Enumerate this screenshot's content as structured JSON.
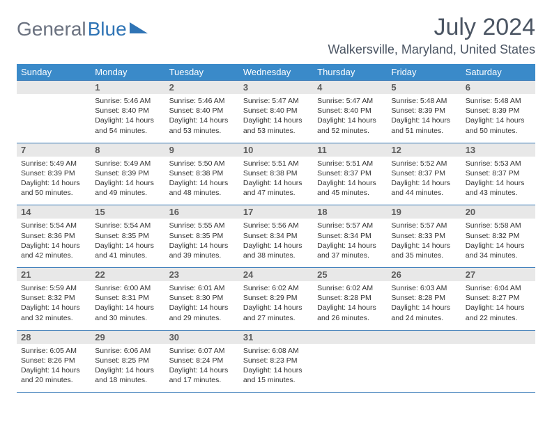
{
  "logo": {
    "text_gray": "General",
    "text_blue": "Blue"
  },
  "title": "July 2024",
  "location": "Walkersville, Maryland, United States",
  "colors": {
    "header_bg": "#3a8ac9",
    "header_text": "#ffffff",
    "daynum_bg": "#e8e8e8",
    "border": "#2f74b5",
    "title_color": "#4b5563"
  },
  "dow": [
    "Sunday",
    "Monday",
    "Tuesday",
    "Wednesday",
    "Thursday",
    "Friday",
    "Saturday"
  ],
  "weeks": [
    [
      {
        "n": "",
        "sr": "",
        "ss": "",
        "dl": ""
      },
      {
        "n": "1",
        "sr": "Sunrise: 5:46 AM",
        "ss": "Sunset: 8:40 PM",
        "dl": "Daylight: 14 hours and 54 minutes."
      },
      {
        "n": "2",
        "sr": "Sunrise: 5:46 AM",
        "ss": "Sunset: 8:40 PM",
        "dl": "Daylight: 14 hours and 53 minutes."
      },
      {
        "n": "3",
        "sr": "Sunrise: 5:47 AM",
        "ss": "Sunset: 8:40 PM",
        "dl": "Daylight: 14 hours and 53 minutes."
      },
      {
        "n": "4",
        "sr": "Sunrise: 5:47 AM",
        "ss": "Sunset: 8:40 PM",
        "dl": "Daylight: 14 hours and 52 minutes."
      },
      {
        "n": "5",
        "sr": "Sunrise: 5:48 AM",
        "ss": "Sunset: 8:39 PM",
        "dl": "Daylight: 14 hours and 51 minutes."
      },
      {
        "n": "6",
        "sr": "Sunrise: 5:48 AM",
        "ss": "Sunset: 8:39 PM",
        "dl": "Daylight: 14 hours and 50 minutes."
      }
    ],
    [
      {
        "n": "7",
        "sr": "Sunrise: 5:49 AM",
        "ss": "Sunset: 8:39 PM",
        "dl": "Daylight: 14 hours and 50 minutes."
      },
      {
        "n": "8",
        "sr": "Sunrise: 5:49 AM",
        "ss": "Sunset: 8:39 PM",
        "dl": "Daylight: 14 hours and 49 minutes."
      },
      {
        "n": "9",
        "sr": "Sunrise: 5:50 AM",
        "ss": "Sunset: 8:38 PM",
        "dl": "Daylight: 14 hours and 48 minutes."
      },
      {
        "n": "10",
        "sr": "Sunrise: 5:51 AM",
        "ss": "Sunset: 8:38 PM",
        "dl": "Daylight: 14 hours and 47 minutes."
      },
      {
        "n": "11",
        "sr": "Sunrise: 5:51 AM",
        "ss": "Sunset: 8:37 PM",
        "dl": "Daylight: 14 hours and 45 minutes."
      },
      {
        "n": "12",
        "sr": "Sunrise: 5:52 AM",
        "ss": "Sunset: 8:37 PM",
        "dl": "Daylight: 14 hours and 44 minutes."
      },
      {
        "n": "13",
        "sr": "Sunrise: 5:53 AM",
        "ss": "Sunset: 8:37 PM",
        "dl": "Daylight: 14 hours and 43 minutes."
      }
    ],
    [
      {
        "n": "14",
        "sr": "Sunrise: 5:54 AM",
        "ss": "Sunset: 8:36 PM",
        "dl": "Daylight: 14 hours and 42 minutes."
      },
      {
        "n": "15",
        "sr": "Sunrise: 5:54 AM",
        "ss": "Sunset: 8:35 PM",
        "dl": "Daylight: 14 hours and 41 minutes."
      },
      {
        "n": "16",
        "sr": "Sunrise: 5:55 AM",
        "ss": "Sunset: 8:35 PM",
        "dl": "Daylight: 14 hours and 39 minutes."
      },
      {
        "n": "17",
        "sr": "Sunrise: 5:56 AM",
        "ss": "Sunset: 8:34 PM",
        "dl": "Daylight: 14 hours and 38 minutes."
      },
      {
        "n": "18",
        "sr": "Sunrise: 5:57 AM",
        "ss": "Sunset: 8:34 PM",
        "dl": "Daylight: 14 hours and 37 minutes."
      },
      {
        "n": "19",
        "sr": "Sunrise: 5:57 AM",
        "ss": "Sunset: 8:33 PM",
        "dl": "Daylight: 14 hours and 35 minutes."
      },
      {
        "n": "20",
        "sr": "Sunrise: 5:58 AM",
        "ss": "Sunset: 8:32 PM",
        "dl": "Daylight: 14 hours and 34 minutes."
      }
    ],
    [
      {
        "n": "21",
        "sr": "Sunrise: 5:59 AM",
        "ss": "Sunset: 8:32 PM",
        "dl": "Daylight: 14 hours and 32 minutes."
      },
      {
        "n": "22",
        "sr": "Sunrise: 6:00 AM",
        "ss": "Sunset: 8:31 PM",
        "dl": "Daylight: 14 hours and 30 minutes."
      },
      {
        "n": "23",
        "sr": "Sunrise: 6:01 AM",
        "ss": "Sunset: 8:30 PM",
        "dl": "Daylight: 14 hours and 29 minutes."
      },
      {
        "n": "24",
        "sr": "Sunrise: 6:02 AM",
        "ss": "Sunset: 8:29 PM",
        "dl": "Daylight: 14 hours and 27 minutes."
      },
      {
        "n": "25",
        "sr": "Sunrise: 6:02 AM",
        "ss": "Sunset: 8:28 PM",
        "dl": "Daylight: 14 hours and 26 minutes."
      },
      {
        "n": "26",
        "sr": "Sunrise: 6:03 AM",
        "ss": "Sunset: 8:28 PM",
        "dl": "Daylight: 14 hours and 24 minutes."
      },
      {
        "n": "27",
        "sr": "Sunrise: 6:04 AM",
        "ss": "Sunset: 8:27 PM",
        "dl": "Daylight: 14 hours and 22 minutes."
      }
    ],
    [
      {
        "n": "28",
        "sr": "Sunrise: 6:05 AM",
        "ss": "Sunset: 8:26 PM",
        "dl": "Daylight: 14 hours and 20 minutes."
      },
      {
        "n": "29",
        "sr": "Sunrise: 6:06 AM",
        "ss": "Sunset: 8:25 PM",
        "dl": "Daylight: 14 hours and 18 minutes."
      },
      {
        "n": "30",
        "sr": "Sunrise: 6:07 AM",
        "ss": "Sunset: 8:24 PM",
        "dl": "Daylight: 14 hours and 17 minutes."
      },
      {
        "n": "31",
        "sr": "Sunrise: 6:08 AM",
        "ss": "Sunset: 8:23 PM",
        "dl": "Daylight: 14 hours and 15 minutes."
      },
      {
        "n": "",
        "sr": "",
        "ss": "",
        "dl": ""
      },
      {
        "n": "",
        "sr": "",
        "ss": "",
        "dl": ""
      },
      {
        "n": "",
        "sr": "",
        "ss": "",
        "dl": ""
      }
    ]
  ]
}
